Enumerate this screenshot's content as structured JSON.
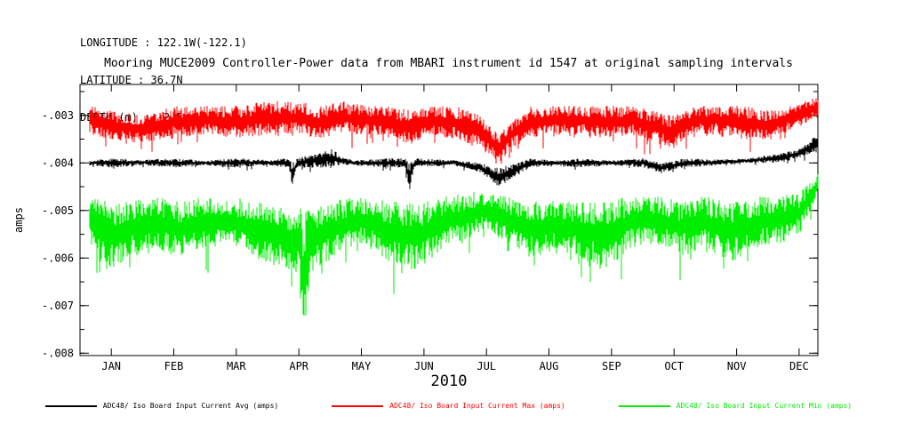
{
  "header": {
    "longitude": "LONGITUDE : 122.1W(-122.1)",
    "latitude": "LATITUDE : 36.7N",
    "depth": "DEPTH (m) : -2.5"
  },
  "title": "Mooring MUCE2009 Controller-Power data from MBARI instrument id 1547 at original sampling intervals",
  "chart_data": {
    "type": "line",
    "title": "Mooring MUCE2009 Controller-Power data from MBARI instrument id 1547 at original sampling intervals",
    "xlabel": "2010",
    "ylabel": "amps",
    "x_tick_labels": [
      "JAN",
      "FEB",
      "MAR",
      "APR",
      "MAY",
      "JUN",
      "JUL",
      "AUG",
      "SEP",
      "OCT",
      "NOV",
      "DEC"
    ],
    "x_tick_months": [
      0.5,
      1.5,
      2.5,
      3.5,
      4.5,
      5.5,
      6.5,
      7.5,
      8.5,
      9.5,
      10.5,
      11.5
    ],
    "xlim": [
      0,
      11.8
    ],
    "y_ticks": [
      -0.003,
      -0.004,
      -0.005,
      -0.006,
      -0.007,
      -0.008
    ],
    "y_tick_labels": [
      "-.003",
      "-.004",
      "-.005",
      "-.006",
      "-.007",
      "-.008"
    ],
    "ylim": [
      -0.00805,
      -0.00235
    ],
    "grid": false,
    "legend_position": "bottom",
    "series": [
      {
        "name": "ADC48/ Iso Board Input Current Avg (amps)",
        "color": "#000000",
        "envelope": [
          [
            0.15,
            -0.00405,
            -0.00395
          ],
          [
            0.5,
            -0.0041,
            -0.0039
          ],
          [
            1.0,
            -0.00405,
            -0.00393
          ],
          [
            1.5,
            -0.0041,
            -0.0039
          ],
          [
            2.0,
            -0.00405,
            -0.00395
          ],
          [
            2.5,
            -0.0041,
            -0.0039
          ],
          [
            3.0,
            -0.00405,
            -0.00394
          ],
          [
            3.34,
            -0.0041,
            -0.0039
          ],
          [
            3.4,
            -0.0045,
            -0.004
          ],
          [
            3.47,
            -0.0041,
            -0.0039
          ],
          [
            4.05,
            -0.0041,
            -0.0037
          ],
          [
            4.15,
            -0.00405,
            -0.00385
          ],
          [
            4.4,
            -0.00405,
            -0.00395
          ],
          [
            4.8,
            -0.0041,
            -0.0039
          ],
          [
            5.2,
            -0.0041,
            -0.0039
          ],
          [
            5.27,
            -0.0046,
            -0.004
          ],
          [
            5.35,
            -0.0041,
            -0.0039
          ],
          [
            6.0,
            -0.00405,
            -0.00394
          ],
          [
            6.4,
            -0.0042,
            -0.004
          ],
          [
            6.7,
            -0.0045,
            -0.0041
          ],
          [
            6.95,
            -0.0043,
            -0.004
          ],
          [
            7.2,
            -0.0041,
            -0.0039
          ],
          [
            7.6,
            -0.00405,
            -0.00395
          ],
          [
            8.0,
            -0.0041,
            -0.0039
          ],
          [
            8.5,
            -0.00405,
            -0.00395
          ],
          [
            9.0,
            -0.0041,
            -0.0039
          ],
          [
            9.3,
            -0.0042,
            -0.004
          ],
          [
            9.7,
            -0.0041,
            -0.0039
          ],
          [
            10.2,
            -0.00405,
            -0.00393
          ],
          [
            10.7,
            -0.004,
            -0.0039
          ],
          [
            11.2,
            -0.004,
            -0.0038
          ],
          [
            11.5,
            -0.0039,
            -0.0037
          ],
          [
            11.8,
            -0.0038,
            -0.0034
          ]
        ]
      },
      {
        "name": "ADC48/ Iso Board Input Current Max (amps)",
        "color": "#ff0000",
        "envelope": [
          [
            0.15,
            -0.0034,
            -0.0028
          ],
          [
            0.5,
            -0.0035,
            -0.0029
          ],
          [
            1.0,
            -0.0036,
            -0.003
          ],
          [
            1.5,
            -0.0035,
            -0.0028
          ],
          [
            2.0,
            -0.0034,
            -0.0028
          ],
          [
            2.5,
            -0.0035,
            -0.0028
          ],
          [
            3.0,
            -0.0034,
            -0.0027
          ],
          [
            3.5,
            -0.0034,
            -0.0027
          ],
          [
            3.8,
            -0.0035,
            -0.0028
          ],
          [
            4.2,
            -0.0034,
            -0.0027
          ],
          [
            4.6,
            -0.0034,
            -0.0028
          ],
          [
            5.0,
            -0.0035,
            -0.0028
          ],
          [
            5.3,
            -0.0036,
            -0.0029
          ],
          [
            5.6,
            -0.0034,
            -0.0028
          ],
          [
            6.0,
            -0.0035,
            -0.0028
          ],
          [
            6.4,
            -0.0037,
            -0.003
          ],
          [
            6.7,
            -0.004,
            -0.0034
          ],
          [
            6.9,
            -0.0037,
            -0.0031
          ],
          [
            7.2,
            -0.0035,
            -0.0028
          ],
          [
            7.6,
            -0.0034,
            -0.0028
          ],
          [
            8.0,
            -0.0034,
            -0.0028
          ],
          [
            8.4,
            -0.0035,
            -0.0028
          ],
          [
            8.8,
            -0.0034,
            -0.0028
          ],
          [
            9.2,
            -0.0036,
            -0.0029
          ],
          [
            9.5,
            -0.0037,
            -0.003
          ],
          [
            9.8,
            -0.0034,
            -0.0028
          ],
          [
            10.2,
            -0.0034,
            -0.0028
          ],
          [
            10.6,
            -0.0035,
            -0.0028
          ],
          [
            11.0,
            -0.0035,
            -0.0029
          ],
          [
            11.4,
            -0.0033,
            -0.0028
          ],
          [
            11.6,
            -0.0032,
            -0.0027
          ],
          [
            11.8,
            -0.003,
            -0.0026
          ]
        ]
      },
      {
        "name": "ADC48/ Iso Board Input Current Min (amps)",
        "color": "#00ee00",
        "envelope": [
          [
            0.15,
            -0.0057,
            -0.0047
          ],
          [
            0.5,
            -0.0063,
            -0.0048
          ],
          [
            0.8,
            -0.006,
            -0.0048
          ],
          [
            1.2,
            -0.0058,
            -0.0047
          ],
          [
            1.6,
            -0.006,
            -0.0048
          ],
          [
            2.0,
            -0.0058,
            -0.0047
          ],
          [
            2.4,
            -0.0057,
            -0.0047
          ],
          [
            2.8,
            -0.006,
            -0.0048
          ],
          [
            3.2,
            -0.0062,
            -0.0049
          ],
          [
            3.5,
            -0.0064,
            -0.0049
          ],
          [
            3.58,
            -0.0078,
            -0.005
          ],
          [
            3.68,
            -0.0064,
            -0.0049
          ],
          [
            4.0,
            -0.006,
            -0.0048
          ],
          [
            4.5,
            -0.0057,
            -0.0047
          ],
          [
            5.0,
            -0.0061,
            -0.0048
          ],
          [
            5.4,
            -0.0063,
            -0.0048
          ],
          [
            5.8,
            -0.0058,
            -0.0047
          ],
          [
            6.2,
            -0.0056,
            -0.0046
          ],
          [
            6.5,
            -0.0054,
            -0.0046
          ],
          [
            6.8,
            -0.0057,
            -0.0047
          ],
          [
            7.2,
            -0.006,
            -0.0048
          ],
          [
            7.6,
            -0.0058,
            -0.0048
          ],
          [
            8.0,
            -0.006,
            -0.0048
          ],
          [
            8.4,
            -0.0063,
            -0.0048
          ],
          [
            8.8,
            -0.0058,
            -0.0047
          ],
          [
            9.2,
            -0.0057,
            -0.0047
          ],
          [
            9.6,
            -0.0059,
            -0.0048
          ],
          [
            10.0,
            -0.0058,
            -0.0047
          ],
          [
            10.4,
            -0.0061,
            -0.0048
          ],
          [
            10.8,
            -0.0058,
            -0.0047
          ],
          [
            11.2,
            -0.0057,
            -0.0047
          ],
          [
            11.5,
            -0.0055,
            -0.0046
          ],
          [
            11.7,
            -0.005,
            -0.0044
          ],
          [
            11.8,
            -0.0046,
            -0.0042
          ]
        ]
      }
    ]
  }
}
